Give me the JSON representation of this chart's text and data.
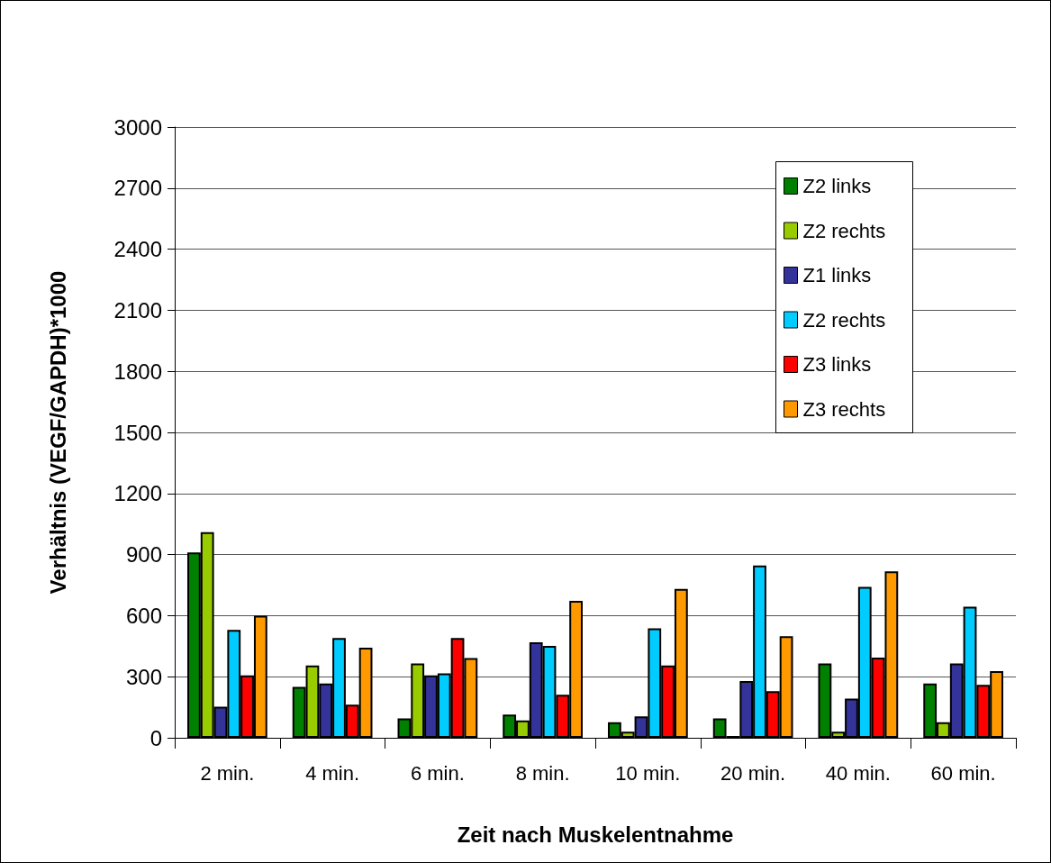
{
  "chart_data": {
    "type": "bar",
    "xlabel": "Zeit nach Muskelentnahme",
    "ylabel": "Verhältnis (VEGF/GAPDH)*1000",
    "categories": [
      "2 min.",
      "4 min.",
      "6 min.",
      "8 min.",
      "10 min.",
      "20 min.",
      "40 min.",
      "60 min."
    ],
    "series": [
      {
        "name": "Z2 links",
        "color": "#008000",
        "values": [
          910,
          250,
          95,
          114,
          76,
          95,
          365,
          267
        ]
      },
      {
        "name": "Z2 rechts",
        "color": "#99cc00",
        "values": [
          1010,
          355,
          365,
          85,
          30,
          9,
          30,
          76
        ]
      },
      {
        "name": "Z1 links",
        "color": "#333399",
        "values": [
          153,
          267,
          306,
          469,
          105,
          279,
          192,
          365
        ]
      },
      {
        "name": "Z2 rechts",
        "color": "#00ccff",
        "values": [
          530,
          490,
          316,
          451,
          538,
          846,
          741,
          644
        ]
      },
      {
        "name": "Z3 links",
        "color": "#ff0000",
        "values": [
          306,
          163,
          490,
          211,
          355,
          229,
          394,
          260
        ]
      },
      {
        "name": "Z3 rechts",
        "color": "#ff9900",
        "values": [
          600,
          442,
          392,
          673,
          731,
          499,
          818,
          327
        ]
      }
    ],
    "ylim": [
      0,
      3000
    ],
    "yticks": [
      0,
      300,
      600,
      900,
      1200,
      1500,
      1800,
      2100,
      2400,
      2700,
      3000
    ],
    "grid": "y",
    "legend": "top right"
  }
}
